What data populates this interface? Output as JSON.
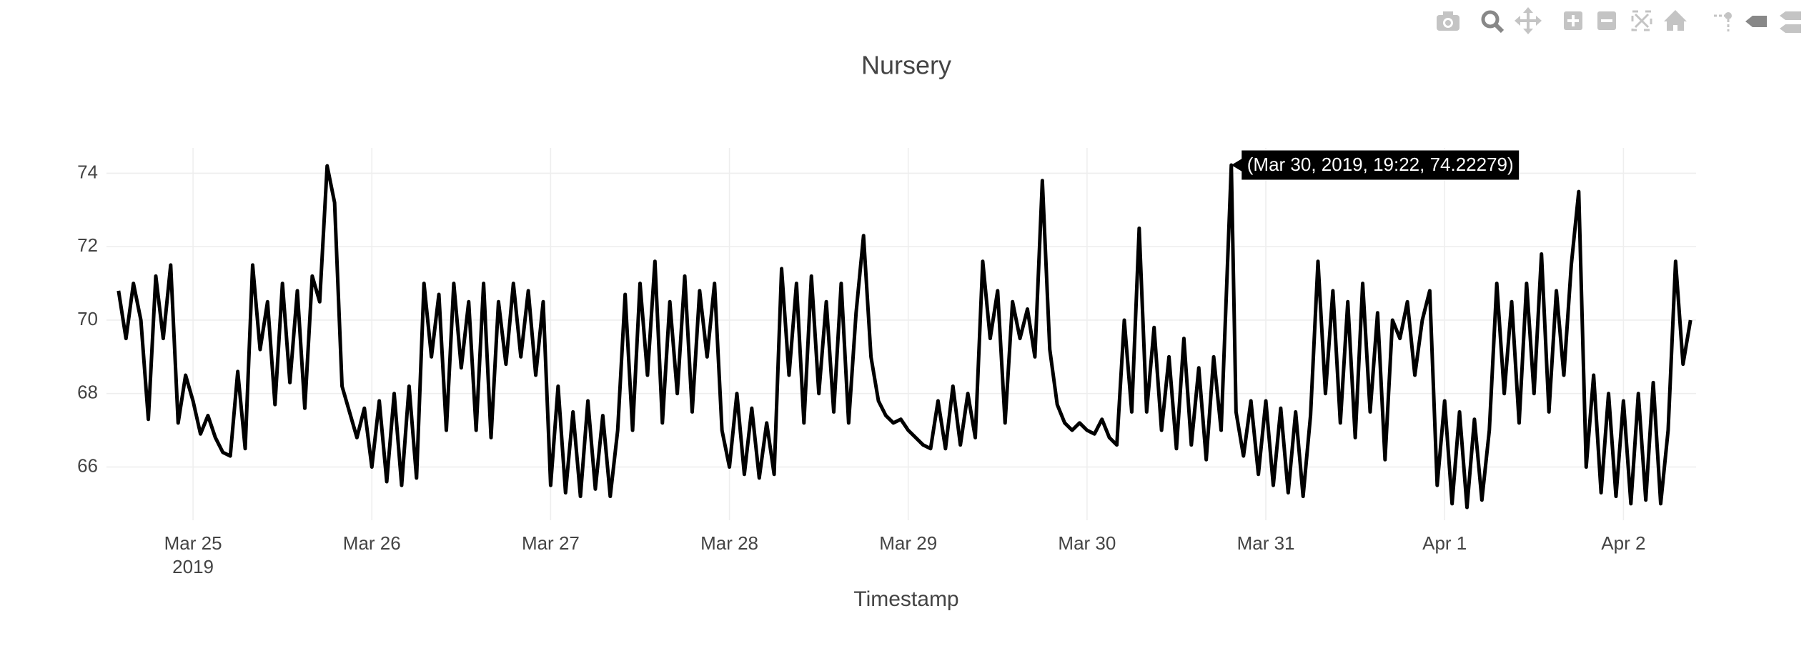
{
  "chart_data": {
    "type": "line",
    "title": "Nursery",
    "x_label": "Timestamp",
    "x_year_label": "2019",
    "color": "#000000",
    "grid": true,
    "x": [
      "2019-03-24 14:00",
      "2019-03-24 15:00",
      "2019-03-24 16:00",
      "2019-03-24 17:00",
      "2019-03-24 18:00",
      "2019-03-24 19:00",
      "2019-03-24 20:00",
      "2019-03-24 21:00",
      "2019-03-24 22:00",
      "2019-03-24 23:00",
      "2019-03-25 00:00",
      "2019-03-25 01:00",
      "2019-03-25 02:00",
      "2019-03-25 03:00",
      "2019-03-25 04:00",
      "2019-03-25 05:00",
      "2019-03-25 06:00",
      "2019-03-25 07:00",
      "2019-03-25 08:00",
      "2019-03-25 09:00",
      "2019-03-25 10:00",
      "2019-03-25 11:00",
      "2019-03-25 12:00",
      "2019-03-25 13:00",
      "2019-03-25 14:00",
      "2019-03-25 15:00",
      "2019-03-25 16:00",
      "2019-03-25 17:00",
      "2019-03-25 18:00",
      "2019-03-25 19:00",
      "2019-03-25 20:00",
      "2019-03-25 21:00",
      "2019-03-25 22:00",
      "2019-03-25 23:00",
      "2019-03-26 00:00",
      "2019-03-26 01:00",
      "2019-03-26 02:00",
      "2019-03-26 03:00",
      "2019-03-26 04:00",
      "2019-03-26 05:00",
      "2019-03-26 06:00",
      "2019-03-26 07:00",
      "2019-03-26 08:00",
      "2019-03-26 09:00",
      "2019-03-26 10:00",
      "2019-03-26 11:00",
      "2019-03-26 12:00",
      "2019-03-26 13:00",
      "2019-03-26 14:00",
      "2019-03-26 15:00",
      "2019-03-26 16:00",
      "2019-03-26 17:00",
      "2019-03-26 18:00",
      "2019-03-26 19:00",
      "2019-03-26 20:00",
      "2019-03-26 21:00",
      "2019-03-26 22:00",
      "2019-03-26 23:00",
      "2019-03-27 00:00",
      "2019-03-27 01:00",
      "2019-03-27 02:00",
      "2019-03-27 03:00",
      "2019-03-27 04:00",
      "2019-03-27 05:00",
      "2019-03-27 06:00",
      "2019-03-27 07:00",
      "2019-03-27 08:00",
      "2019-03-27 09:00",
      "2019-03-27 10:00",
      "2019-03-27 11:00",
      "2019-03-27 12:00",
      "2019-03-27 13:00",
      "2019-03-27 14:00",
      "2019-03-27 15:00",
      "2019-03-27 16:00",
      "2019-03-27 17:00",
      "2019-03-27 18:00",
      "2019-03-27 19:00",
      "2019-03-27 20:00",
      "2019-03-27 21:00",
      "2019-03-27 22:00",
      "2019-03-27 23:00",
      "2019-03-28 00:00",
      "2019-03-28 01:00",
      "2019-03-28 02:00",
      "2019-03-28 03:00",
      "2019-03-28 04:00",
      "2019-03-28 05:00",
      "2019-03-28 06:00",
      "2019-03-28 07:00",
      "2019-03-28 08:00",
      "2019-03-28 09:00",
      "2019-03-28 10:00",
      "2019-03-28 11:00",
      "2019-03-28 12:00",
      "2019-03-28 13:00",
      "2019-03-28 14:00",
      "2019-03-28 15:00",
      "2019-03-28 16:00",
      "2019-03-28 17:00",
      "2019-03-28 18:00",
      "2019-03-28 19:00",
      "2019-03-28 20:00",
      "2019-03-28 21:00",
      "2019-03-28 22:00",
      "2019-03-28 23:00",
      "2019-03-29 00:00",
      "2019-03-29 01:00",
      "2019-03-29 02:00",
      "2019-03-29 03:00",
      "2019-03-29 04:00",
      "2019-03-29 05:00",
      "2019-03-29 06:00",
      "2019-03-29 07:00",
      "2019-03-29 08:00",
      "2019-03-29 09:00",
      "2019-03-29 10:00",
      "2019-03-29 11:00",
      "2019-03-29 12:00",
      "2019-03-29 13:00",
      "2019-03-29 14:00",
      "2019-03-29 15:00",
      "2019-03-29 16:00",
      "2019-03-29 17:00",
      "2019-03-29 18:00",
      "2019-03-29 19:00",
      "2019-03-29 20:00",
      "2019-03-29 21:00",
      "2019-03-29 22:00",
      "2019-03-29 23:00",
      "2019-03-30 00:00",
      "2019-03-30 01:00",
      "2019-03-30 02:00",
      "2019-03-30 03:00",
      "2019-03-30 04:00",
      "2019-03-30 05:00",
      "2019-03-30 06:00",
      "2019-03-30 07:00",
      "2019-03-30 08:00",
      "2019-03-30 09:00",
      "2019-03-30 10:00",
      "2019-03-30 11:00",
      "2019-03-30 12:00",
      "2019-03-30 13:00",
      "2019-03-30 14:00",
      "2019-03-30 15:00",
      "2019-03-30 16:00",
      "2019-03-30 17:00",
      "2019-03-30 18:00",
      "2019-03-30 19:22",
      "2019-03-30 20:00",
      "2019-03-30 21:00",
      "2019-03-30 22:00",
      "2019-03-30 23:00",
      "2019-03-31 00:00",
      "2019-03-31 01:00",
      "2019-03-31 02:00",
      "2019-03-31 03:00",
      "2019-03-31 04:00",
      "2019-03-31 05:00",
      "2019-03-31 06:00",
      "2019-03-31 07:00",
      "2019-03-31 08:00",
      "2019-03-31 09:00",
      "2019-03-31 10:00",
      "2019-03-31 11:00",
      "2019-03-31 12:00",
      "2019-03-31 13:00",
      "2019-03-31 14:00",
      "2019-03-31 15:00",
      "2019-03-31 16:00",
      "2019-03-31 17:00",
      "2019-03-31 18:00",
      "2019-03-31 19:00",
      "2019-03-31 20:00",
      "2019-03-31 21:00",
      "2019-03-31 22:00",
      "2019-03-31 23:00",
      "2019-04-01 00:00",
      "2019-04-01 01:00",
      "2019-04-01 02:00",
      "2019-04-01 03:00",
      "2019-04-01 04:00",
      "2019-04-01 05:00",
      "2019-04-01 06:00",
      "2019-04-01 07:00",
      "2019-04-01 08:00",
      "2019-04-01 09:00",
      "2019-04-01 10:00",
      "2019-04-01 11:00",
      "2019-04-01 12:00",
      "2019-04-01 13:00",
      "2019-04-01 14:00",
      "2019-04-01 15:00",
      "2019-04-01 16:00",
      "2019-04-01 17:00",
      "2019-04-01 18:00",
      "2019-04-01 19:00",
      "2019-04-01 20:00",
      "2019-04-01 21:00",
      "2019-04-01 22:00",
      "2019-04-01 23:00",
      "2019-04-02 00:00",
      "2019-04-02 01:00",
      "2019-04-02 02:00",
      "2019-04-02 03:00",
      "2019-04-02 04:00",
      "2019-04-02 05:00",
      "2019-04-02 06:00",
      "2019-04-02 07:00",
      "2019-04-02 08:00",
      "2019-04-02 09:00"
    ],
    "values": [
      70.8,
      69.5,
      71,
      70,
      67.3,
      71.2,
      69.5,
      71.5,
      67.2,
      68.5,
      67.8,
      66.9,
      67.4,
      66.8,
      66.4,
      66.3,
      68.6,
      66.5,
      71.5,
      69.2,
      70.5,
      67.7,
      71,
      68.3,
      70.8,
      67.6,
      71.2,
      70.5,
      74.2,
      73.2,
      68.2,
      67.5,
      66.8,
      67.6,
      66,
      67.8,
      65.6,
      68,
      65.5,
      68.2,
      65.7,
      71,
      69,
      70.7,
      67,
      71,
      68.7,
      70.5,
      67,
      71,
      66.8,
      70.5,
      68.8,
      71,
      69,
      70.8,
      68.5,
      70.5,
      65.5,
      68.2,
      65.3,
      67.5,
      65.2,
      67.8,
      65.4,
      67.4,
      65.2,
      67,
      70.7,
      67,
      71,
      68.5,
      71.6,
      67.2,
      70.5,
      68,
      71.2,
      67.5,
      70.8,
      69,
      71,
      67,
      66,
      68,
      65.8,
      67.6,
      65.7,
      67.2,
      65.8,
      71.4,
      68.5,
      71,
      67.2,
      71.2,
      68,
      70.5,
      67.5,
      71,
      67.2,
      70.2,
      72.3,
      69,
      67.8,
      67.4,
      67.2,
      67.3,
      67,
      66.8,
      66.6,
      66.5,
      67.8,
      66.5,
      68.2,
      66.6,
      68,
      66.8,
      71.6,
      69.5,
      70.8,
      67.2,
      70.5,
      69.5,
      70.3,
      69,
      73.8,
      69.2,
      67.7,
      67.2,
      67,
      67.2,
      67,
      66.9,
      67.3,
      66.8,
      66.6,
      70,
      67.5,
      72.5,
      67.5,
      69.8,
      67,
      69,
      66.5,
      69.5,
      66.6,
      68.7,
      66.2,
      69,
      67,
      74.22279,
      67.5,
      66.3,
      67.8,
      65.8,
      67.8,
      65.5,
      67.6,
      65.3,
      67.5,
      65.2,
      67.4,
      71.6,
      68,
      70.8,
      67.2,
      70.5,
      66.8,
      71,
      67.5,
      70.2,
      66.2,
      70,
      69.5,
      70.5,
      68.5,
      70,
      70.8,
      65.5,
      67.8,
      65,
      67.5,
      64.9,
      67.3,
      65.1,
      67,
      71,
      68,
      70.5,
      67.2,
      71,
      68,
      71.8,
      67.5,
      70.8,
      68.5,
      71.5,
      73.5,
      66,
      68.5,
      65.3,
      68,
      65.2,
      67.8,
      65,
      68,
      65.1,
      68.3,
      65,
      67,
      71.6,
      68.8,
      70
    ],
    "xlim": [
      "2019-03-24 12:23",
      "2019-04-02 09:45"
    ],
    "xticks": [
      {
        "value": "2019-03-25",
        "label": "Mar 25"
      },
      {
        "value": "2019-03-26",
        "label": "Mar 26"
      },
      {
        "value": "2019-03-27",
        "label": "Mar 27"
      },
      {
        "value": "2019-03-28",
        "label": "Mar 28"
      },
      {
        "value": "2019-03-29",
        "label": "Mar 29"
      },
      {
        "value": "2019-03-30",
        "label": "Mar 30"
      },
      {
        "value": "2019-03-31",
        "label": "Mar 31"
      },
      {
        "value": "2019-04-01",
        "label": "Apr 1"
      },
      {
        "value": "2019-04-02",
        "label": "Apr 2"
      }
    ],
    "ylim": [
      64.55,
      74.69
    ],
    "yticks": [
      66,
      68,
      70,
      72,
      74
    ],
    "hover": {
      "x": "2019-03-30 19:22",
      "y": 74.22279,
      "label": "(Mar 30, 2019, 19:22, 74.22279)"
    }
  }
}
